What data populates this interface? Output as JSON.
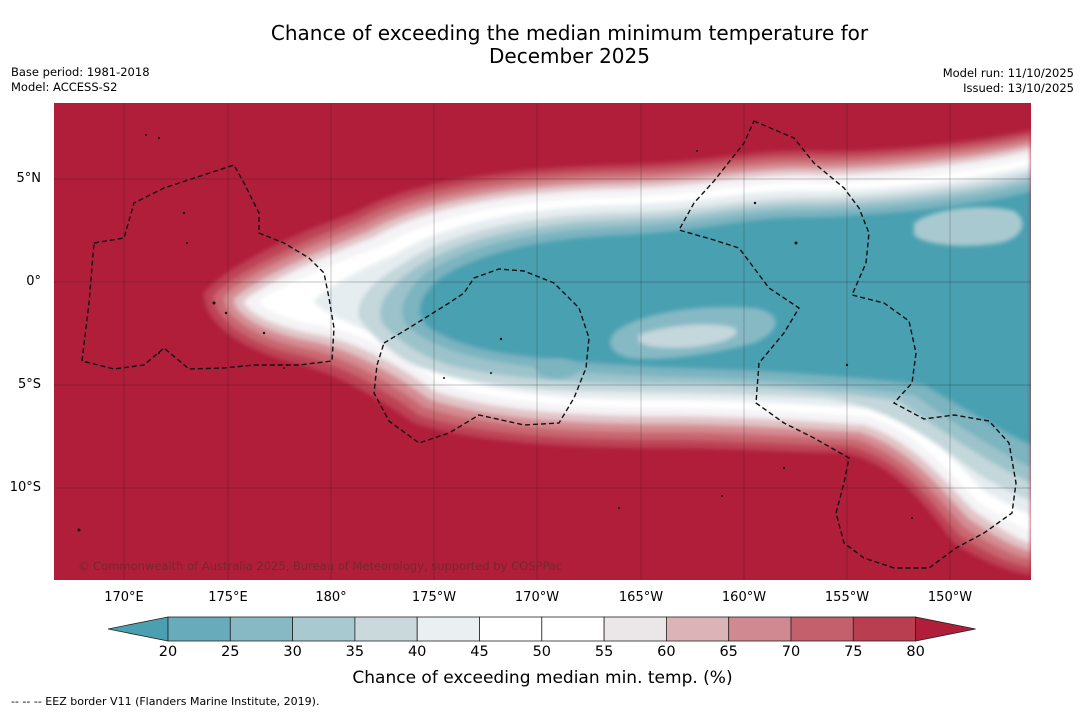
{
  "header": {
    "title_line1": "Chance of exceeding the median minimum temperature for",
    "title_line2": "December 2025",
    "base_period": "Base period: 1981-2018",
    "model": "Model: ACCESS-S2",
    "model_run": "Model run: 11/10/2025",
    "issued": "Issued: 13/10/2025"
  },
  "map": {
    "copyright": "© Commonwealth of Australia 2025, Bureau of Meteorology, supported by COSPPac",
    "lat_ticks": [
      "5°N",
      "0°",
      "5°S",
      "10°S"
    ],
    "lon_ticks": [
      "170°E",
      "175°E",
      "180°",
      "175°W",
      "170°W",
      "165°W",
      "160°W",
      "155°W",
      "150°W"
    ]
  },
  "colorbar": {
    "label": "Chance of exceeding median min. temp. (%)",
    "ticks": [
      "20",
      "25",
      "30",
      "35",
      "40",
      "45",
      "50",
      "55",
      "60",
      "65",
      "70",
      "75",
      "80"
    ],
    "colors": [
      "#4aa0b1",
      "#68abba",
      "#86b9c4",
      "#a8c9cf",
      "#cad9dc",
      "#eaeff2",
      "#ffffff",
      "#ffffff",
      "#ebe6e7",
      "#dcb4b8",
      "#d08990",
      "#c45f6c",
      "#b93f50",
      "#b01e3a"
    ]
  },
  "legend": {
    "eez": "--  --  -- EEZ border V11 (Flanders Marine Institute, 2019)."
  }
}
